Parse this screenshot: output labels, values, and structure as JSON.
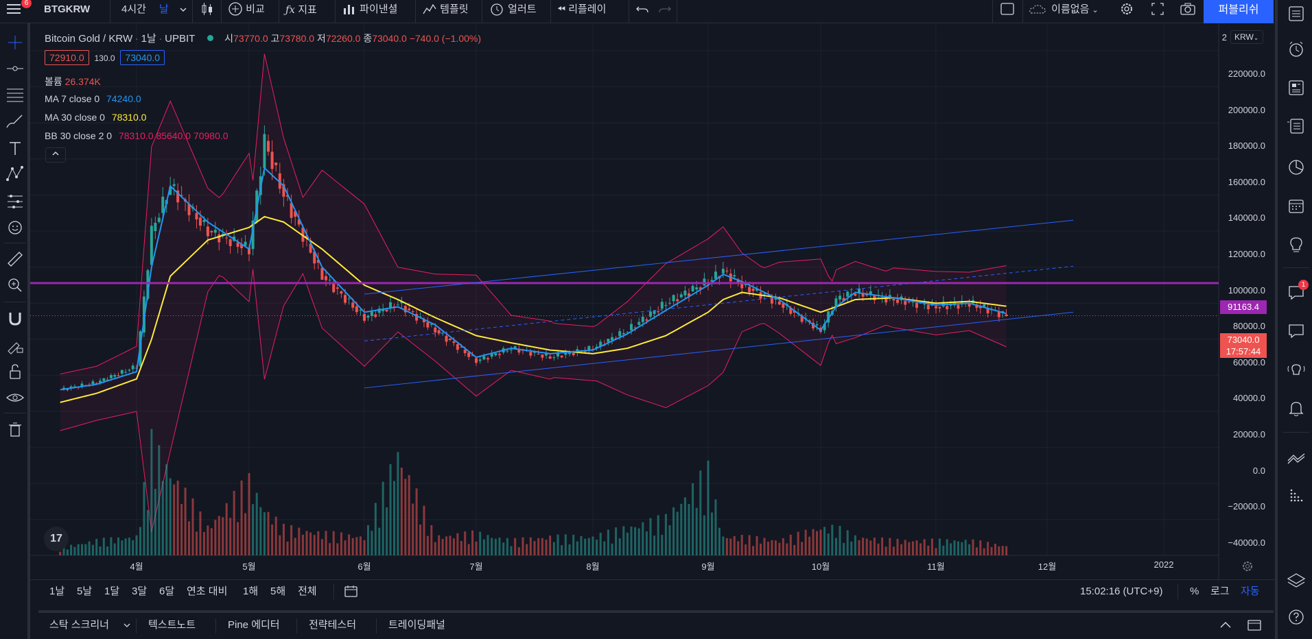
{
  "toolbar": {
    "menu_badge": "6",
    "symbol": "BTGKRW",
    "interval_4h": "4시간",
    "interval_day": "날",
    "compare": "비교",
    "indicators": "지표",
    "financials": "파이낸셜",
    "templates": "템플릿",
    "alerts": "얼러트",
    "replay": "리플레이",
    "layout_name": "이름없음",
    "publish": "퍼블리쉬"
  },
  "legend": {
    "title": "Bitcoin Gold / KRW",
    "interval": "1날",
    "exchange": "UPBIT",
    "o_label": "시",
    "o_val": "73770.0",
    "h_label": "고",
    "h_val": "73780.0",
    "l_label": "저",
    "l_val": "72260.0",
    "c_label": "종",
    "c_val": "73040.0",
    "change": "−740.0 (−1.00%)",
    "bid": "72910.0",
    "spread": "130.0",
    "ask": "73040.0",
    "volume_label": "볼륨",
    "volume_val": "26.374K",
    "ma7_label": "MA 7 close 0",
    "ma7_val": "74240.0",
    "ma30_label": "MA 30 close 0",
    "ma30_val": "78310.0",
    "bb_label": "BB 30 close 2 0",
    "bb_basis": "78310.0",
    "bb_upper": "85640.0",
    "bb_lower": "70980.0"
  },
  "price_axis": {
    "currency": "KRW",
    "top_label": "2",
    "labels": [
      "220000.0",
      "200000.0",
      "180000.0",
      "160000.0",
      "140000.0",
      "120000.0",
      "100000.0",
      "80000.0",
      "60000.0",
      "40000.0",
      "20000.0",
      "0.0",
      "−20000.0",
      "−40000.0"
    ],
    "hline_label": "91163.4",
    "last_price": "73040.0",
    "countdown": "17:57:44"
  },
  "time_axis": {
    "labels": [
      "4월",
      "5월",
      "6월",
      "7월",
      "8월",
      "9월",
      "10월",
      "11월",
      "12월",
      "2022"
    ]
  },
  "bottom": {
    "ranges": [
      "1날",
      "5날",
      "1달",
      "3달",
      "6달",
      "연초 대비",
      "1해",
      "5해",
      "전체"
    ],
    "clock": "15:02:16 (UTC+9)",
    "pct": "%",
    "log": "로그",
    "auto": "자동"
  },
  "panels": [
    "스탁 스크리너",
    "텍스트노트",
    "Pine 에디터",
    "전략테스터",
    "트레이딩패널"
  ],
  "right_badge": "1",
  "colors": {
    "bg": "#131722",
    "up": "#26a69a",
    "down": "#ef5350",
    "ma7": "#2196f3",
    "ma30": "#ffeb3b",
    "bb": "#e91e63",
    "hline": "#9c27b0",
    "channel": "#2962ff",
    "accent": "#2962ff"
  },
  "chart_data": {
    "type": "candlestick",
    "symbol": "Bitcoin Gold / KRW",
    "ylim": [
      -48000,
      232000
    ],
    "x": [
      "03-10",
      "03-20",
      "04-01",
      "04-05",
      "04-10",
      "04-20",
      "05-01",
      "05-05",
      "05-10",
      "05-20",
      "06-01",
      "06-10",
      "06-20",
      "07-01",
      "07-10",
      "07-20",
      "08-01",
      "08-10",
      "08-20",
      "09-01",
      "09-05",
      "09-10",
      "09-20",
      "10-01",
      "10-05",
      "10-10",
      "10-20",
      "11-01",
      "11-10",
      "11-20"
    ],
    "close": [
      32000,
      36000,
      45000,
      120000,
      145000,
      120000,
      110000,
      170000,
      140000,
      95000,
      72000,
      80000,
      65000,
      48000,
      55000,
      50000,
      55000,
      65000,
      80000,
      92000,
      98000,
      90000,
      80000,
      65000,
      82000,
      86000,
      82000,
      78000,
      80000,
      73040
    ],
    "volume_k": [
      4,
      8,
      10,
      60,
      45,
      15,
      40,
      25,
      15,
      12,
      10,
      55,
      10,
      12,
      8,
      10,
      10,
      15,
      20,
      45,
      10,
      10,
      8,
      15,
      15,
      10,
      8,
      8,
      8,
      5
    ],
    "ma7": [
      32000,
      35000,
      42000,
      100000,
      145000,
      125000,
      110000,
      155000,
      145000,
      100000,
      75000,
      78000,
      68000,
      50000,
      55000,
      52000,
      54000,
      63000,
      76000,
      90000,
      96000,
      92000,
      82000,
      65000,
      78000,
      86000,
      83000,
      79000,
      80000,
      74240
    ],
    "ma30": [
      25000,
      30000,
      38000,
      60000,
      95000,
      115000,
      122000,
      128000,
      125000,
      110000,
      90000,
      82000,
      72000,
      62000,
      58000,
      54000,
      52000,
      55000,
      62000,
      75000,
      82000,
      86000,
      83000,
      75000,
      78000,
      82000,
      83000,
      80000,
      81000,
      78310
    ],
    "hline": 91163.4,
    "last": 73040
  }
}
